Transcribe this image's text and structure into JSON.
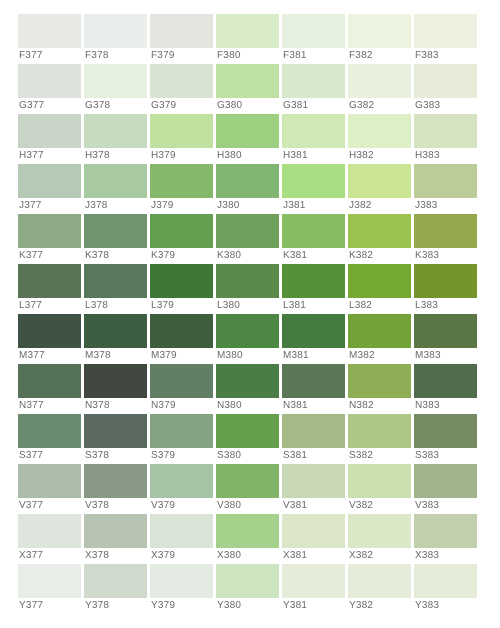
{
  "rows": [
    {
      "cells": [
        {
          "code": "F377",
          "color": "#e6eae3"
        },
        {
          "code": "F378",
          "color": "#eaeeea"
        },
        {
          "code": "F379",
          "color": "#e2e6df"
        },
        {
          "code": "F380",
          "color": "#d9ecc8"
        },
        {
          "code": "F381",
          "color": "#e6f0df"
        },
        {
          "code": "F382",
          "color": "#ecf3df"
        },
        {
          "code": "F383",
          "color": "#ecf1df"
        }
      ]
    },
    {
      "cells": [
        {
          "code": "G377",
          "color": "#dde2da"
        },
        {
          "code": "G378",
          "color": "#e5f0de"
        },
        {
          "code": "G379",
          "color": "#d9e3d4"
        },
        {
          "code": "G380",
          "color": "#bee0a3"
        },
        {
          "code": "G381",
          "color": "#d8e8cc"
        },
        {
          "code": "G382",
          "color": "#e8f1dd"
        },
        {
          "code": "G383",
          "color": "#e6ecd8"
        }
      ]
    },
    {
      "cells": [
        {
          "code": "H377",
          "color": "#c8d5c6"
        },
        {
          "code": "H378",
          "color": "#c5dcc1"
        },
        {
          "code": "H379",
          "color": "#bfe09e"
        },
        {
          "code": "H380",
          "color": "#9ccf7f"
        },
        {
          "code": "H381",
          "color": "#cfe9b4"
        },
        {
          "code": "H382",
          "color": "#ddf0c5"
        },
        {
          "code": "H383",
          "color": "#d5e3c1"
        }
      ]
    },
    {
      "cells": [
        {
          "code": "J377",
          "color": "#b5c9b5"
        },
        {
          "code": "J378",
          "color": "#a9c9a2"
        },
        {
          "code": "J379",
          "color": "#86b86b"
        },
        {
          "code": "J380",
          "color": "#80b572"
        },
        {
          "code": "J381",
          "color": "#aade82"
        },
        {
          "code": "J382",
          "color": "#c9e493"
        },
        {
          "code": "J383",
          "color": "#bccc99"
        }
      ]
    },
    {
      "cells": [
        {
          "code": "K377",
          "color": "#8faa86"
        },
        {
          "code": "K378",
          "color": "#719470"
        },
        {
          "code": "K379",
          "color": "#629f51"
        },
        {
          "code": "K380",
          "color": "#6ea15c"
        },
        {
          "code": "K381",
          "color": "#88bc62"
        },
        {
          "code": "K382",
          "color": "#9bc24e"
        },
        {
          "code": "K383",
          "color": "#95a84c"
        }
      ]
    },
    {
      "cells": [
        {
          "code": "L377",
          "color": "#5b7356"
        },
        {
          "code": "L378",
          "color": "#5a785c"
        },
        {
          "code": "L379",
          "color": "#3e7837"
        },
        {
          "code": "L380",
          "color": "#5a8b4a"
        },
        {
          "code": "L381",
          "color": "#55913a"
        },
        {
          "code": "L382",
          "color": "#74a832"
        },
        {
          "code": "L383",
          "color": "#74942d"
        }
      ]
    },
    {
      "cells": [
        {
          "code": "M377",
          "color": "#3e5344"
        },
        {
          "code": "M378",
          "color": "#3e5e41"
        },
        {
          "code": "M379",
          "color": "#3f5e3d"
        },
        {
          "code": "M380",
          "color": "#4d8744"
        },
        {
          "code": "M381",
          "color": "#447b3f"
        },
        {
          "code": "M382",
          "color": "#72a238"
        },
        {
          "code": "M383",
          "color": "#5a7644"
        }
      ]
    },
    {
      "cells": [
        {
          "code": "N377",
          "color": "#557158"
        },
        {
          "code": "N378",
          "color": "#404840"
        },
        {
          "code": "N379",
          "color": "#627e64"
        },
        {
          "code": "N380",
          "color": "#4a7c46"
        },
        {
          "code": "N381",
          "color": "#5c7757"
        },
        {
          "code": "N382",
          "color": "#8ead55"
        },
        {
          "code": "N383",
          "color": "#526c4e"
        }
      ]
    },
    {
      "cells": [
        {
          "code": "S377",
          "color": "#6a8b6f"
        },
        {
          "code": "S378",
          "color": "#5b6a5e"
        },
        {
          "code": "S379",
          "color": "#85a283"
        },
        {
          "code": "S380",
          "color": "#64a04c"
        },
        {
          "code": "S381",
          "color": "#a5b986"
        },
        {
          "code": "S382",
          "color": "#adc786"
        },
        {
          "code": "S383",
          "color": "#748b63"
        }
      ]
    },
    {
      "cells": [
        {
          "code": "V377",
          "color": "#acbdac"
        },
        {
          "code": "V378",
          "color": "#889986"
        },
        {
          "code": "V379",
          "color": "#a7c3a5"
        },
        {
          "code": "V380",
          "color": "#80b567"
        },
        {
          "code": "V381",
          "color": "#c9d8b4"
        },
        {
          "code": "V382",
          "color": "#c9dfae"
        },
        {
          "code": "V383",
          "color": "#a1b38a"
        }
      ]
    },
    {
      "cells": [
        {
          "code": "X377",
          "color": "#dde5dc"
        },
        {
          "code": "X378",
          "color": "#b8c4b2"
        },
        {
          "code": "X379",
          "color": "#d9e3d6"
        },
        {
          "code": "X380",
          "color": "#a4d28d"
        },
        {
          "code": "X381",
          "color": "#dbe5c8"
        },
        {
          "code": "X382",
          "color": "#dbe8c8"
        },
        {
          "code": "X383",
          "color": "#c2cfad"
        }
      ]
    },
    {
      "cells": [
        {
          "code": "Y377",
          "color": "#e8ede7"
        },
        {
          "code": "Y378",
          "color": "#cfdacd"
        },
        {
          "code": "Y379",
          "color": "#e4ebe3"
        },
        {
          "code": "Y380",
          "color": "#cde4c0"
        },
        {
          "code": "Y381",
          "color": "#e6ecda"
        },
        {
          "code": "Y382",
          "color": "#e5ecda"
        },
        {
          "code": "Y383",
          "color": "#e4ebd6"
        }
      ]
    }
  ]
}
